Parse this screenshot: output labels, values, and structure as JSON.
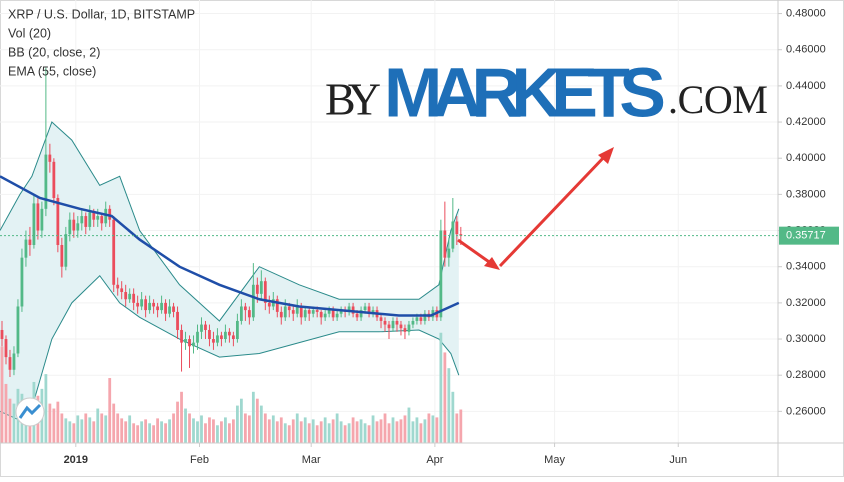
{
  "chart_data": {
    "type": "candlestick",
    "title": "XRP / U.S. Dollar, 1D, BITSTAMP",
    "indicators": [
      "Vol (20)",
      "BB (20, close, 2)",
      "EMA (55, close)"
    ],
    "watermark": {
      "prefix": "BY",
      "brand": "MARKETS",
      "suffix": ".COM"
    },
    "xlim": [
      0,
      195
    ],
    "xticks": [
      {
        "value": 19,
        "label": "2019"
      },
      {
        "value": 50,
        "label": "Feb"
      },
      {
        "value": 78,
        "label": "Mar"
      },
      {
        "value": 109,
        "label": "Apr"
      },
      {
        "value": 139,
        "label": "May"
      },
      {
        "value": 170,
        "label": "Jun"
      }
    ],
    "ylim": [
      0.2425,
      0.4875
    ],
    "yticks": [
      {
        "value": 0.26,
        "label": "0.26000"
      },
      {
        "value": 0.28,
        "label": "0.28000"
      },
      {
        "value": 0.3,
        "label": "0.30000"
      },
      {
        "value": 0.32,
        "label": "0.32000"
      },
      {
        "value": 0.34,
        "label": "0.34000"
      },
      {
        "value": 0.36,
        "label": "0.36000"
      },
      {
        "value": 0.38,
        "label": "0.38000"
      },
      {
        "value": 0.4,
        "label": "0.40000"
      },
      {
        "value": 0.42,
        "label": "0.42000"
      },
      {
        "value": 0.44,
        "label": "0.44000"
      },
      {
        "value": 0.46,
        "label": "0.46000"
      },
      {
        "value": 0.48,
        "label": "0.48000"
      }
    ],
    "up_color": "#53b987",
    "down_color": "#eb4d5c",
    "up_volume_color": "#9fd8cf",
    "down_volume_color": "#f5a6ad",
    "candles": [
      [
        0.305,
        0.31,
        0.296,
        0.3
      ],
      [
        0.3,
        0.302,
        0.286,
        0.29
      ],
      [
        0.29,
        0.294,
        0.279,
        0.283
      ],
      [
        0.283,
        0.296,
        0.28,
        0.292
      ],
      [
        0.292,
        0.322,
        0.29,
        0.318
      ],
      [
        0.318,
        0.35,
        0.315,
        0.345
      ],
      [
        0.345,
        0.36,
        0.34,
        0.355
      ],
      [
        0.355,
        0.362,
        0.346,
        0.352
      ],
      [
        0.352,
        0.38,
        0.35,
        0.375
      ],
      [
        0.375,
        0.378,
        0.355,
        0.36
      ],
      [
        0.36,
        0.376,
        0.356,
        0.372
      ],
      [
        0.372,
        0.45,
        0.368,
        0.402
      ],
      [
        0.402,
        0.408,
        0.392,
        0.398
      ],
      [
        0.398,
        0.4,
        0.374,
        0.378
      ],
      [
        0.378,
        0.38,
        0.348,
        0.352
      ],
      [
        0.352,
        0.356,
        0.334,
        0.34
      ],
      [
        0.34,
        0.362,
        0.338,
        0.358
      ],
      [
        0.358,
        0.37,
        0.354,
        0.366
      ],
      [
        0.366,
        0.37,
        0.356,
        0.36
      ],
      [
        0.36,
        0.368,
        0.356,
        0.364
      ],
      [
        0.364,
        0.372,
        0.36,
        0.368
      ],
      [
        0.368,
        0.37,
        0.358,
        0.362
      ],
      [
        0.362,
        0.374,
        0.36,
        0.37
      ],
      [
        0.37,
        0.372,
        0.362,
        0.366
      ],
      [
        0.366,
        0.372,
        0.362,
        0.368
      ],
      [
        0.368,
        0.37,
        0.36,
        0.364
      ],
      [
        0.364,
        0.376,
        0.362,
        0.372
      ],
      [
        0.372,
        0.374,
        0.362,
        0.366
      ],
      [
        0.366,
        0.368,
        0.326,
        0.33
      ],
      [
        0.33,
        0.334,
        0.324,
        0.328
      ],
      [
        0.328,
        0.332,
        0.322,
        0.326
      ],
      [
        0.326,
        0.33,
        0.318,
        0.322
      ],
      [
        0.322,
        0.328,
        0.32,
        0.325
      ],
      [
        0.325,
        0.328,
        0.316,
        0.32
      ],
      [
        0.32,
        0.324,
        0.314,
        0.318
      ],
      [
        0.318,
        0.326,
        0.316,
        0.322
      ],
      [
        0.322,
        0.324,
        0.312,
        0.316
      ],
      [
        0.316,
        0.324,
        0.314,
        0.32
      ],
      [
        0.32,
        0.322,
        0.314,
        0.318
      ],
      [
        0.318,
        0.32,
        0.312,
        0.316
      ],
      [
        0.316,
        0.324,
        0.314,
        0.32
      ],
      [
        0.32,
        0.322,
        0.31,
        0.314
      ],
      [
        0.314,
        0.322,
        0.312,
        0.318
      ],
      [
        0.318,
        0.32,
        0.312,
        0.315
      ],
      [
        0.315,
        0.318,
        0.3,
        0.305
      ],
      [
        0.305,
        0.308,
        0.282,
        0.298
      ],
      [
        0.298,
        0.304,
        0.294,
        0.3
      ],
      [
        0.3,
        0.302,
        0.284,
        0.296
      ],
      [
        0.296,
        0.302,
        0.292,
        0.298
      ],
      [
        0.298,
        0.308,
        0.294,
        0.304
      ],
      [
        0.304,
        0.312,
        0.3,
        0.308
      ],
      [
        0.308,
        0.31,
        0.3,
        0.305
      ],
      [
        0.305,
        0.308,
        0.296,
        0.3
      ],
      [
        0.3,
        0.304,
        0.294,
        0.298
      ],
      [
        0.298,
        0.306,
        0.296,
        0.302
      ],
      [
        0.302,
        0.304,
        0.296,
        0.3
      ],
      [
        0.3,
        0.308,
        0.298,
        0.304
      ],
      [
        0.304,
        0.306,
        0.298,
        0.302
      ],
      [
        0.302,
        0.304,
        0.296,
        0.3
      ],
      [
        0.3,
        0.314,
        0.298,
        0.31
      ],
      [
        0.31,
        0.322,
        0.308,
        0.318
      ],
      [
        0.318,
        0.32,
        0.31,
        0.316
      ],
      [
        0.316,
        0.318,
        0.308,
        0.312
      ],
      [
        0.312,
        0.342,
        0.31,
        0.33
      ],
      [
        0.33,
        0.334,
        0.32,
        0.325
      ],
      [
        0.325,
        0.338,
        0.322,
        0.332
      ],
      [
        0.332,
        0.334,
        0.316,
        0.32
      ],
      [
        0.32,
        0.324,
        0.314,
        0.318
      ],
      [
        0.318,
        0.326,
        0.316,
        0.322
      ],
      [
        0.322,
        0.324,
        0.312,
        0.315
      ],
      [
        0.315,
        0.318,
        0.308,
        0.312
      ],
      [
        0.312,
        0.322,
        0.31,
        0.318
      ],
      [
        0.318,
        0.32,
        0.312,
        0.316
      ],
      [
        0.316,
        0.318,
        0.31,
        0.314
      ],
      [
        0.314,
        0.322,
        0.312,
        0.318
      ],
      [
        0.318,
        0.32,
        0.308,
        0.312
      ],
      [
        0.312,
        0.318,
        0.31,
        0.316
      ],
      [
        0.316,
        0.318,
        0.31,
        0.314
      ],
      [
        0.314,
        0.318,
        0.312,
        0.316
      ],
      [
        0.316,
        0.318,
        0.312,
        0.315
      ],
      [
        0.315,
        0.316,
        0.308,
        0.312
      ],
      [
        0.312,
        0.316,
        0.31,
        0.314
      ],
      [
        0.314,
        0.318,
        0.312,
        0.316
      ],
      [
        0.316,
        0.318,
        0.31,
        0.312
      ],
      [
        0.312,
        0.316,
        0.31,
        0.314
      ],
      [
        0.314,
        0.318,
        0.312,
        0.316
      ],
      [
        0.316,
        0.318,
        0.312,
        0.315
      ],
      [
        0.315,
        0.32,
        0.313,
        0.318
      ],
      [
        0.318,
        0.32,
        0.312,
        0.314
      ],
      [
        0.314,
        0.316,
        0.31,
        0.312
      ],
      [
        0.312,
        0.318,
        0.31,
        0.316
      ],
      [
        0.316,
        0.32,
        0.314,
        0.318
      ],
      [
        0.318,
        0.32,
        0.312,
        0.314
      ],
      [
        0.314,
        0.318,
        0.312,
        0.316
      ],
      [
        0.316,
        0.318,
        0.31,
        0.312
      ],
      [
        0.312,
        0.314,
        0.306,
        0.31
      ],
      [
        0.31,
        0.312,
        0.304,
        0.308
      ],
      [
        0.308,
        0.31,
        0.3,
        0.306
      ],
      [
        0.306,
        0.312,
        0.304,
        0.31
      ],
      [
        0.31,
        0.312,
        0.304,
        0.308
      ],
      [
        0.308,
        0.31,
        0.302,
        0.306
      ],
      [
        0.306,
        0.308,
        0.3,
        0.304
      ],
      [
        0.304,
        0.31,
        0.302,
        0.308
      ],
      [
        0.308,
        0.312,
        0.306,
        0.31
      ],
      [
        0.31,
        0.314,
        0.308,
        0.312
      ],
      [
        0.312,
        0.314,
        0.308,
        0.31
      ],
      [
        0.31,
        0.316,
        0.308,
        0.314
      ],
      [
        0.314,
        0.316,
        0.31,
        0.312
      ],
      [
        0.312,
        0.318,
        0.31,
        0.316
      ],
      [
        0.316,
        0.318,
        0.31,
        0.312
      ],
      [
        0.312,
        0.366,
        0.31,
        0.36
      ],
      [
        0.36,
        0.376,
        0.34,
        0.345
      ],
      [
        0.345,
        0.356,
        0.34,
        0.35
      ],
      [
        0.35,
        0.378,
        0.348,
        0.365
      ],
      [
        0.365,
        0.368,
        0.352,
        0.358
      ],
      [
        0.358,
        0.362,
        0.352,
        0.35717
      ]
    ],
    "vlim": [
      0,
      450
    ],
    "volume": [
      98,
      60,
      45,
      40,
      55,
      50,
      38,
      30,
      62,
      48,
      55,
      70,
      40,
      35,
      42,
      30,
      25,
      22,
      20,
      28,
      24,
      30,
      26,
      22,
      35,
      30,
      28,
      66,
      40,
      30,
      25,
      22,
      28,
      20,
      18,
      22,
      24,
      20,
      18,
      25,
      22,
      20,
      24,
      30,
      42,
      52,
      35,
      30,
      25,
      22,
      28,
      20,
      26,
      24,
      18,
      22,
      26,
      20,
      24,
      38,
      45,
      30,
      28,
      52,
      45,
      38,
      30,
      24,
      28,
      22,
      26,
      20,
      18,
      24,
      30,
      22,
      26,
      20,
      24,
      18,
      22,
      26,
      20,
      24,
      30,
      22,
      18,
      20,
      26,
      22,
      24,
      20,
      18,
      28,
      22,
      24,
      30,
      20,
      26,
      22,
      24,
      28,
      36,
      22,
      26,
      20,
      24,
      30,
      28,
      26,
      112,
      92,
      76,
      52,
      30,
      34
    ],
    "ema": {
      "color": "#1f4ea8",
      "x": [
        0,
        10,
        20,
        28,
        35,
        45,
        55,
        65,
        75,
        90,
        100,
        108,
        115
      ],
      "values": [
        0.39,
        0.378,
        0.372,
        0.368,
        0.355,
        0.34,
        0.33,
        0.322,
        0.318,
        0.315,
        0.313,
        0.313,
        0.32
      ]
    },
    "bb": {
      "color": "#2a8a8a",
      "fill": "#e3f2f4",
      "x": [
        0,
        5,
        8,
        13,
        18,
        25,
        30,
        35,
        45,
        55,
        65,
        75,
        85,
        95,
        105,
        110,
        113,
        115
      ],
      "upper": [
        0.36,
        0.38,
        0.39,
        0.42,
        0.41,
        0.385,
        0.39,
        0.36,
        0.33,
        0.31,
        0.34,
        0.33,
        0.322,
        0.322,
        0.322,
        0.33,
        0.36,
        0.372
      ],
      "lower": [
        0.26,
        0.255,
        0.262,
        0.3,
        0.32,
        0.335,
        0.32,
        0.312,
        0.3,
        0.29,
        0.292,
        0.298,
        0.304,
        0.304,
        0.305,
        0.3,
        0.292,
        0.28
      ]
    },
    "grid": true
  }
}
